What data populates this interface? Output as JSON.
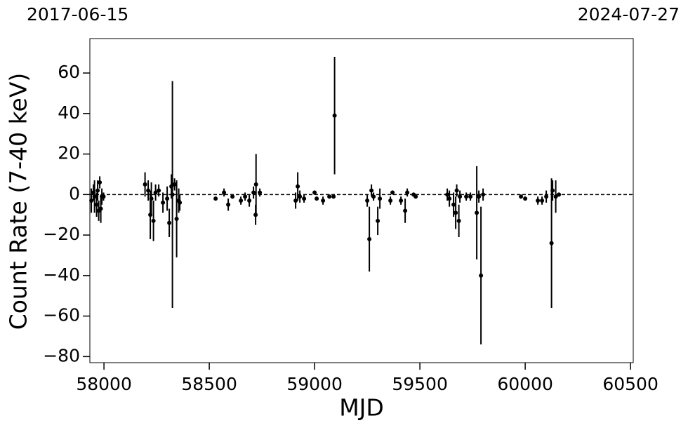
{
  "chart_data": {
    "type": "scatter",
    "top_left_label": "2017-06-15",
    "top_right_label": "2024-07-27",
    "x_label": "MJD",
    "y_label": "Count Rate (7-40 keV)",
    "xlim": [
      57933,
      60513
    ],
    "ylim": [
      -83,
      77
    ],
    "xticks": [
      58000,
      58500,
      59000,
      59500,
      60000,
      60500
    ],
    "yticks": [
      {
        "value": -80,
        "label": "−80"
      },
      {
        "value": -60,
        "label": "−60"
      },
      {
        "value": -40,
        "label": "−40"
      },
      {
        "value": -20,
        "label": "−20"
      },
      0,
      20,
      40,
      60
    ],
    "hline": 0,
    "hline_color": "#000000",
    "series": [
      {
        "color": "#000000",
        "x": [
          57940,
          57950,
          57955,
          57965,
          57970,
          57975,
          57980,
          57985,
          57990,
          57998,
          58195,
          58210,
          58220,
          58225,
          58235,
          58245,
          58260,
          58280,
          58300,
          58310,
          58320,
          58325,
          58335,
          58345,
          58355,
          58360,
          58530,
          58570,
          58590,
          58610,
          58650,
          58670,
          58690,
          58710,
          58720,
          58722,
          58740,
          58910,
          58920,
          58930,
          58950,
          59000,
          59010,
          59040,
          59070,
          59090,
          59095,
          59250,
          59260,
          59270,
          59280,
          59300,
          59310,
          59360,
          59370,
          59410,
          59430,
          59440,
          59470,
          59480,
          59630,
          59640,
          59660,
          59670,
          59675,
          59685,
          59690,
          59720,
          59740,
          59770,
          59780,
          59790,
          59800,
          59980,
          60000,
          60060,
          60080,
          60100,
          60125,
          60130,
          60145,
          60160
        ],
        "values": [
          -3,
          1,
          -1,
          -5,
          2,
          -8,
          6,
          -7,
          -1,
          -1,
          5,
          2,
          -10,
          -2,
          -13,
          1,
          2,
          -4,
          -2,
          -14,
          4,
          0,
          5,
          -12,
          -3,
          -4,
          -2,
          1,
          -5,
          -1,
          -3,
          -1,
          -3,
          1,
          -10,
          5,
          1,
          -3,
          4,
          -1,
          -2,
          1,
          -2,
          -3,
          -1,
          -1,
          39,
          -3,
          -22,
          2,
          -1,
          -13,
          -2,
          -3,
          1,
          -3,
          -8,
          1,
          0,
          -1,
          0,
          -2,
          -5,
          -9,
          2,
          -13,
          -1,
          -1,
          -1,
          -9,
          -1,
          -40,
          0,
          -1,
          -2,
          -3,
          -3,
          -1,
          -24,
          2,
          -1,
          0
        ],
        "errors": [
          6,
          4,
          8,
          6,
          5,
          5,
          3,
          7,
          4,
          2,
          6,
          5,
          12,
          8,
          10,
          4,
          3,
          5,
          6,
          7,
          6,
          56,
          3,
          19,
          6,
          4,
          1,
          2,
          3,
          1,
          2,
          2,
          3,
          3,
          5,
          15,
          2,
          4,
          7,
          3,
          2,
          1,
          1,
          2,
          1,
          1,
          29,
          3,
          16,
          3,
          2,
          7,
          5,
          2,
          1,
          2,
          6,
          2,
          1,
          1,
          3,
          4,
          6,
          8,
          3,
          8,
          3,
          2,
          2,
          23,
          3,
          34,
          3,
          1,
          1,
          2,
          2,
          3,
          32,
          5,
          8,
          1
        ]
      }
    ]
  }
}
